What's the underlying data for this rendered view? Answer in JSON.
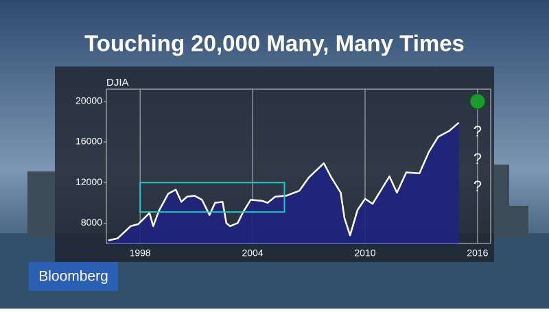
{
  "chart_data": {
    "type": "area",
    "title": "Touching 20,000 Many, Many Times",
    "y_label": "DJIA",
    "series": [
      {
        "name": "DJIA",
        "color": "#ffffff",
        "fill": "#1f2380",
        "x": [
          1996.3,
          1996.8,
          1997.5,
          1997.9,
          1998.5,
          1998.7,
          1999.0,
          1999.5,
          1999.9,
          2000.2,
          2000.5,
          2000.9,
          2001.3,
          2001.7,
          2002.0,
          2002.4,
          2002.6,
          2002.8,
          2003.2,
          2003.5,
          2003.9,
          2004.5,
          2004.8,
          2005.2,
          2005.8,
          2006.5,
          2007.0,
          2007.8,
          2008.2,
          2008.7,
          2008.9,
          2009.2,
          2009.6,
          2010.0,
          2010.4,
          2011.3,
          2011.7,
          2012.2,
          2012.9,
          2013.4,
          2013.9,
          2014.5,
          2015.0
        ],
        "values": [
          6300,
          6500,
          7700,
          7900,
          9000,
          7700,
          9200,
          10900,
          11300,
          10100,
          10600,
          10700,
          10300,
          8800,
          10000,
          10100,
          8000,
          7700,
          8000,
          9100,
          10300,
          10200,
          10000,
          10600,
          10700,
          11200,
          12500,
          13900,
          12500,
          11000,
          8500,
          6800,
          9300,
          10400,
          9900,
          12600,
          11000,
          13000,
          12900,
          15000,
          16500,
          17100,
          17900
        ]
      }
    ],
    "highlight": {
      "x": [
        1998,
        2005.7
      ],
      "y": [
        9100,
        12000
      ],
      "color": "#22c8c8"
    },
    "target": {
      "x": 2016,
      "y": 20000,
      "color": "#1a9a2a"
    },
    "annotations": [
      "?",
      "?",
      "?"
    ],
    "xlim": [
      1996.2,
      2016.7
    ],
    "ylim": [
      6000,
      21200
    ],
    "xticks": [
      1998,
      2004,
      2010,
      2016
    ],
    "yticks": [
      8000,
      12000,
      16000,
      20000
    ],
    "grid": "x"
  },
  "brand": "Bloomberg"
}
